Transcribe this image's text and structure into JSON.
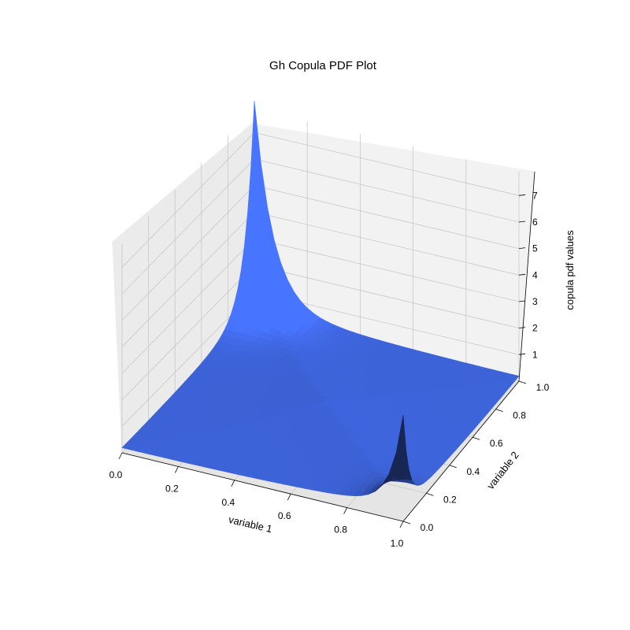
{
  "chart_data": {
    "type": "surface3d",
    "title": "Gh Copula PDF Plot",
    "xlabel": "variable 1",
    "ylabel": "variable 2",
    "zlabel": "copula pdf values",
    "xlim": [
      0,
      1
    ],
    "ylim": [
      0,
      1
    ],
    "zlim": [
      0,
      7.9
    ],
    "x_ticks": [
      "0.0",
      "0.2",
      "0.4",
      "0.6",
      "0.8",
      "1.0"
    ],
    "y_ticks": [
      "0.0",
      "0.2",
      "0.4",
      "0.6",
      "0.8",
      "1.0"
    ],
    "z_ticks": [
      "1",
      "2",
      "3",
      "4",
      "5",
      "6",
      "7"
    ],
    "surface_color": "#3d63d8",
    "grid": true,
    "peaks": [
      {
        "x": 0.0,
        "y": 1.0,
        "z": 7.6
      },
      {
        "x": 1.0,
        "y": 0.0,
        "z": 3.4
      }
    ]
  }
}
